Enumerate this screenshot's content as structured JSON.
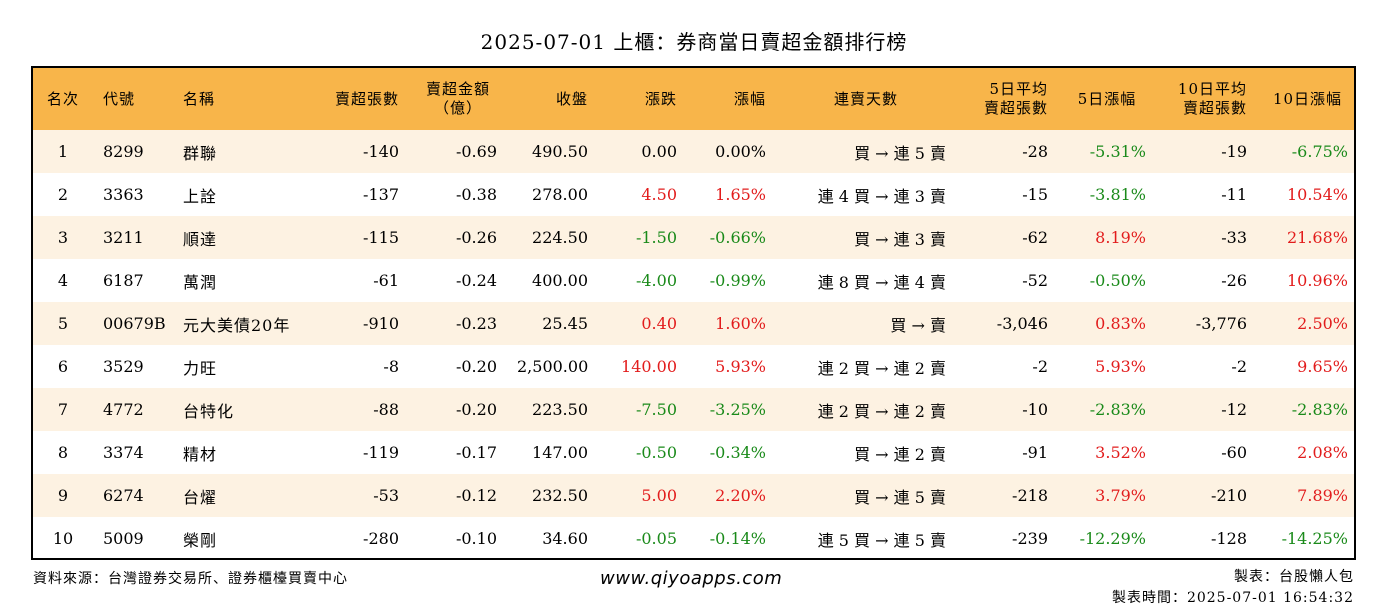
{
  "title": "2025-07-01 上櫃：券商當日賣超金額排行榜",
  "headers": [
    "名次",
    "代號",
    "名稱",
    "賣超張數",
    "賣超金額\n（億）",
    "收盤",
    "漲跌",
    "漲幅",
    "連賣天數",
    "5日平均\n賣超張數",
    "5日漲幅",
    "10日平均\n賣超張數",
    "10日漲幅"
  ],
  "rows": [
    {
      "rank": "1",
      "code": "8299",
      "name": "群聯",
      "sell_shares": "-140",
      "sell_amount": "-0.69",
      "close": "490.50",
      "change": "0.00",
      "change_pct": "0.00%",
      "days": "買 → 連 5 賣",
      "avg5": "-28",
      "pct5": "-5.31%",
      "avg10": "-19",
      "pct10": "-6.75%"
    },
    {
      "rank": "2",
      "code": "3363",
      "name": "上詮",
      "sell_shares": "-137",
      "sell_amount": "-0.38",
      "close": "278.00",
      "change": "4.50",
      "change_pct": "1.65%",
      "days": "連 4 買 → 連 3 賣",
      "avg5": "-15",
      "pct5": "-3.81%",
      "avg10": "-11",
      "pct10": "10.54%"
    },
    {
      "rank": "3",
      "code": "3211",
      "name": "順達",
      "sell_shares": "-115",
      "sell_amount": "-0.26",
      "close": "224.50",
      "change": "-1.50",
      "change_pct": "-0.66%",
      "days": "買 → 連 3 賣",
      "avg5": "-62",
      "pct5": "8.19%",
      "avg10": "-33",
      "pct10": "21.68%"
    },
    {
      "rank": "4",
      "code": "6187",
      "name": "萬潤",
      "sell_shares": "-61",
      "sell_amount": "-0.24",
      "close": "400.00",
      "change": "-4.00",
      "change_pct": "-0.99%",
      "days": "連 8 買 → 連 4 賣",
      "avg5": "-52",
      "pct5": "-0.50%",
      "avg10": "-26",
      "pct10": "10.96%"
    },
    {
      "rank": "5",
      "code": "00679B",
      "name": "元大美債20年",
      "sell_shares": "-910",
      "sell_amount": "-0.23",
      "close": "25.45",
      "change": "0.40",
      "change_pct": "1.60%",
      "days": "買 → 賣",
      "avg5": "-3,046",
      "pct5": "0.83%",
      "avg10": "-3,776",
      "pct10": "2.50%"
    },
    {
      "rank": "6",
      "code": "3529",
      "name": "力旺",
      "sell_shares": "-8",
      "sell_amount": "-0.20",
      "close": "2,500.00",
      "change": "140.00",
      "change_pct": "5.93%",
      "days": "連 2 買 → 連 2 賣",
      "avg5": "-2",
      "pct5": "5.93%",
      "avg10": "-2",
      "pct10": "9.65%"
    },
    {
      "rank": "7",
      "code": "4772",
      "name": "台特化",
      "sell_shares": "-88",
      "sell_amount": "-0.20",
      "close": "223.50",
      "change": "-7.50",
      "change_pct": "-3.25%",
      "days": "連 2 買 → 連 2 賣",
      "avg5": "-10",
      "pct5": "-2.83%",
      "avg10": "-12",
      "pct10": "-2.83%"
    },
    {
      "rank": "8",
      "code": "3374",
      "name": "精材",
      "sell_shares": "-119",
      "sell_amount": "-0.17",
      "close": "147.00",
      "change": "-0.50",
      "change_pct": "-0.34%",
      "days": "買 → 連 2 賣",
      "avg5": "-91",
      "pct5": "3.52%",
      "avg10": "-60",
      "pct10": "2.08%"
    },
    {
      "rank": "9",
      "code": "6274",
      "name": "台燿",
      "sell_shares": "-53",
      "sell_amount": "-0.12",
      "close": "232.50",
      "change": "5.00",
      "change_pct": "2.20%",
      "days": "買 → 連 5 賣",
      "avg5": "-218",
      "pct5": "3.79%",
      "avg10": "-210",
      "pct10": "7.89%"
    },
    {
      "rank": "10",
      "code": "5009",
      "name": "榮剛",
      "sell_shares": "-280",
      "sell_amount": "-0.10",
      "close": "34.60",
      "change": "-0.05",
      "change_pct": "-0.14%",
      "days": "連 5 買 → 連 5 賣",
      "avg5": "-239",
      "pct5": "-12.29%",
      "avg10": "-128",
      "pct10": "-14.25%"
    }
  ],
  "footer": {
    "source": "資料來源：台灣證券交易所、證券櫃檯買賣中心",
    "website": "www.qiyoapps.com",
    "author": "製表：台股懶人包",
    "time": "製表時間：2025-07-01 16:54:32"
  },
  "colors": {
    "header_bg": "#f8b54a",
    "row_alt_bg": "#fdf2e2",
    "up": "#e21c1c",
    "down": "#1a8a1a"
  }
}
